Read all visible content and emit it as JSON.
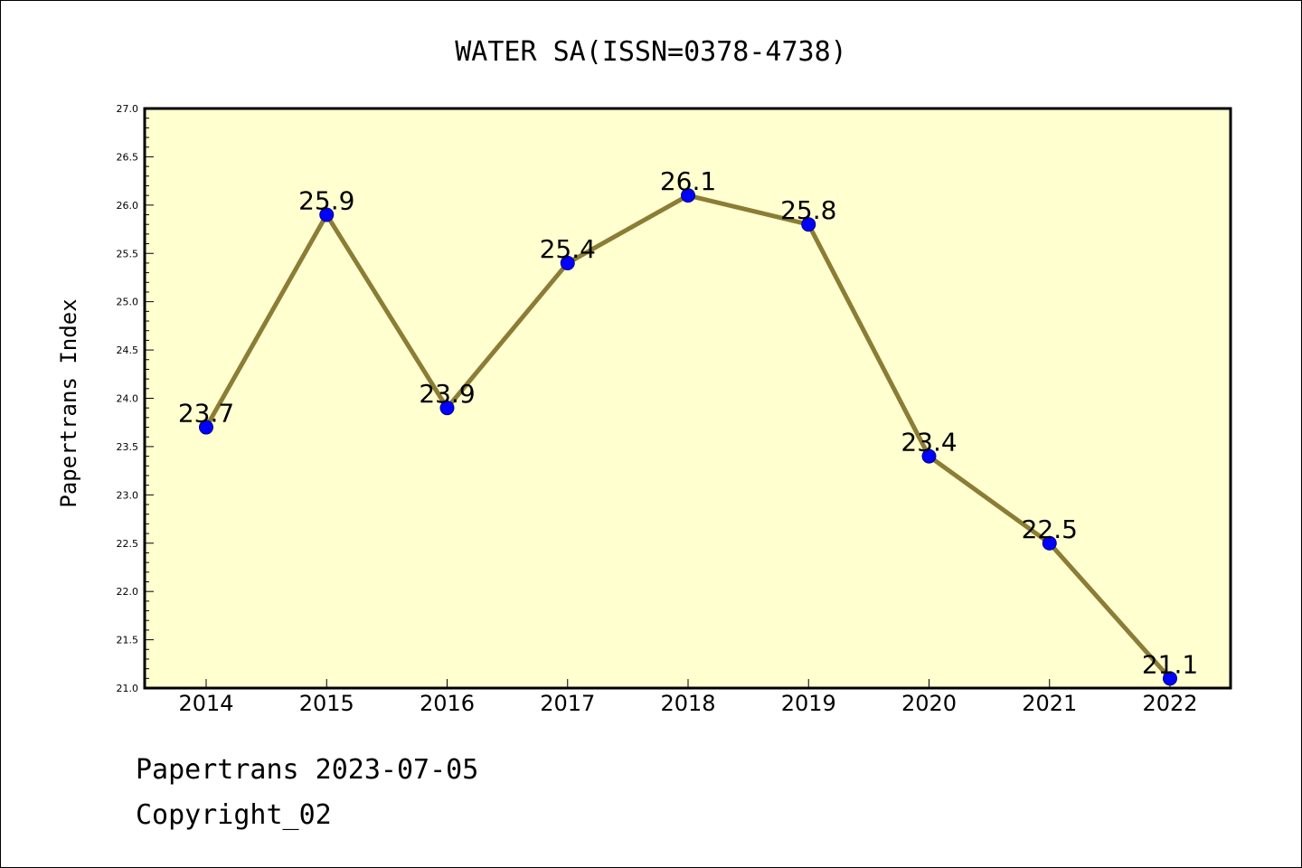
{
  "chart_data": {
    "type": "line",
    "title": "WATER SA(ISSN=0378-4738)",
    "xlabel": "",
    "ylabel": "Papertrans Index",
    "categories": [
      "2014",
      "2015",
      "2016",
      "2017",
      "2018",
      "2019",
      "2020",
      "2021",
      "2022"
    ],
    "series": [
      {
        "values": [
          23.7,
          25.9,
          23.9,
          25.4,
          26.1,
          25.8,
          23.4,
          22.5,
          21.1
        ],
        "data_labels": [
          "23.7",
          "25.9",
          "23.9",
          "25.4",
          "26.1",
          "25.8",
          "23.4",
          "22.5",
          "21.1"
        ]
      }
    ],
    "ylim": [
      21.0,
      27.0
    ],
    "ytick_labels": [
      "21.0",
      "21.5",
      "22.0",
      "22.5",
      "23.0",
      "23.5",
      "24.0",
      "24.5",
      "25.0",
      "25.5",
      "26.0",
      "26.5",
      "27.0"
    ],
    "grid": false,
    "legend": "none",
    "colors": {
      "plot_background": "#ffffd0",
      "line": "#8b7d35",
      "marker_fill": "#0000ff",
      "marker_edge": "#000080"
    }
  },
  "footer": {
    "date_text": "Papertrans 2023-07-05",
    "copyright_text": "Copyright_02"
  }
}
